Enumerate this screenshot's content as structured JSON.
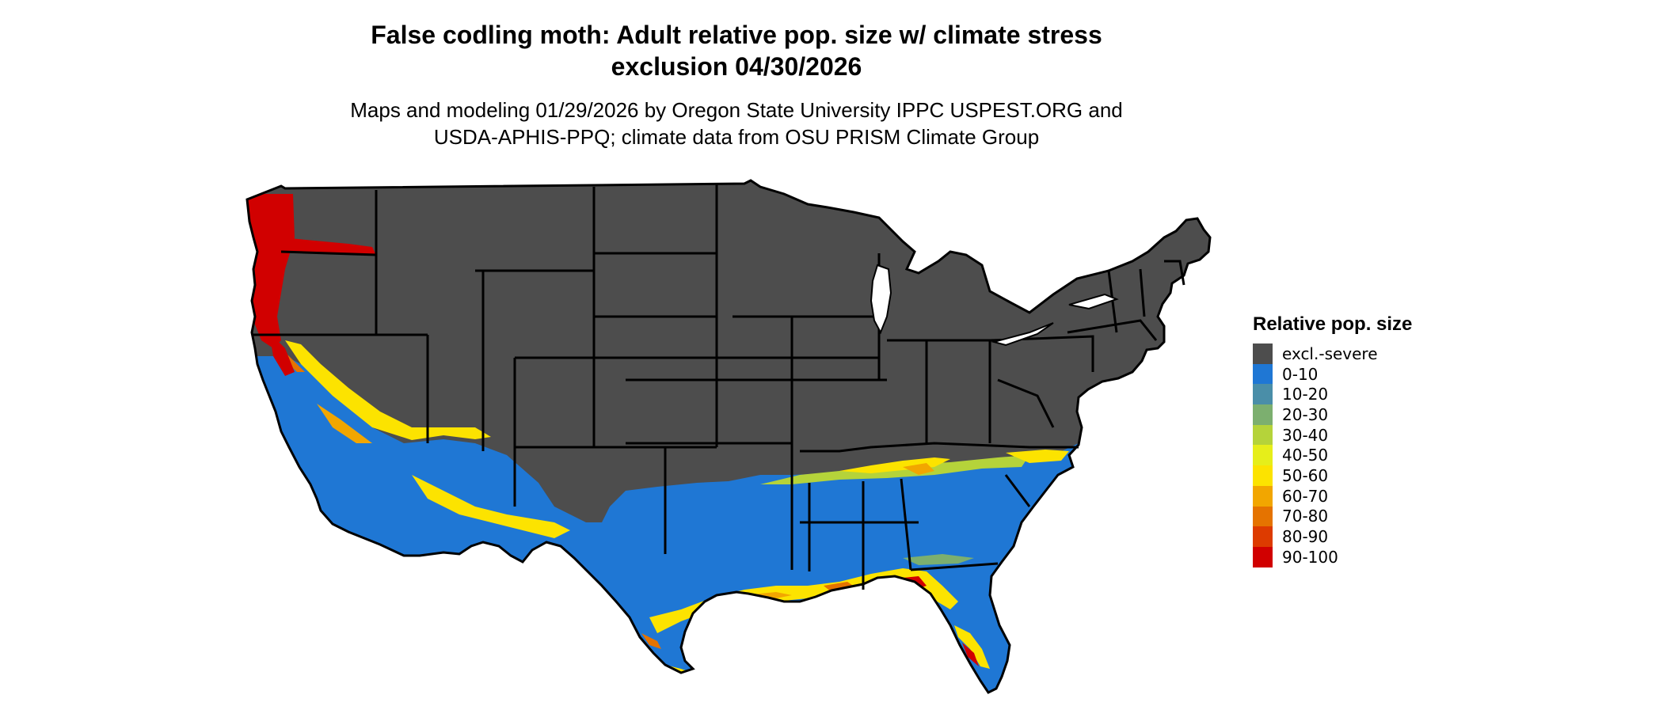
{
  "title": {
    "line1": "False codling moth: Adult relative pop. size w/ climate stress",
    "line2": "exclusion 04/30/2026"
  },
  "subtitle": {
    "line1": "Maps and modeling 01/29/2026 by Oregon State University IPPC USPEST.ORG and",
    "line2": "USDA-APHIS-PPQ; climate data from OSU PRISM Climate Group"
  },
  "legend": {
    "title": "Relative pop. size",
    "items": [
      {
        "label": "excl.-severe",
        "color": "#4d4d4d"
      },
      {
        "label": "0-10",
        "color": "#1f77d4"
      },
      {
        "label": "10-20",
        "color": "#4a8ea8"
      },
      {
        "label": "20-30",
        "color": "#7caf6f"
      },
      {
        "label": "30-40",
        "color": "#b5d33a"
      },
      {
        "label": "40-50",
        "color": "#e6ee1a"
      },
      {
        "label": "50-60",
        "color": "#fce300"
      },
      {
        "label": "60-70",
        "color": "#f2a600"
      },
      {
        "label": "70-80",
        "color": "#e57300"
      },
      {
        "label": "80-90",
        "color": "#dd3b00"
      },
      {
        "label": "90-100",
        "color": "#d10000"
      }
    ]
  },
  "map": {
    "region": "Contiguous United States",
    "background_class": "excl.-severe",
    "boundary_color": "#000000"
  }
}
